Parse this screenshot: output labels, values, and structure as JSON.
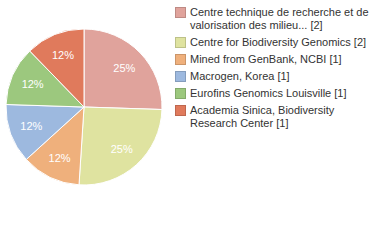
{
  "chart_data": {
    "type": "pie",
    "categories": [
      "Centre technique de recherche et de valorisation des milieu... [2]",
      "Centre for Biodiversity Genomics [2]",
      "Mined from GenBank, NCBI [1]",
      "Macrogen, Korea [1]",
      "Eurofins Genomics Louisville [1]",
      "Academia Sinica, Biodiversity Research Center [1]"
    ],
    "values": [
      25,
      25,
      12,
      12,
      12,
      12
    ],
    "value_labels": [
      "25%",
      "25%",
      "12%",
      "12%",
      "12%",
      "12%"
    ],
    "colors": [
      "#e0a39c",
      "#dfe3a0",
      "#efb07c",
      "#9db9df",
      "#9cc87e",
      "#e07a5c"
    ],
    "data_labels": true,
    "legend": "right"
  }
}
